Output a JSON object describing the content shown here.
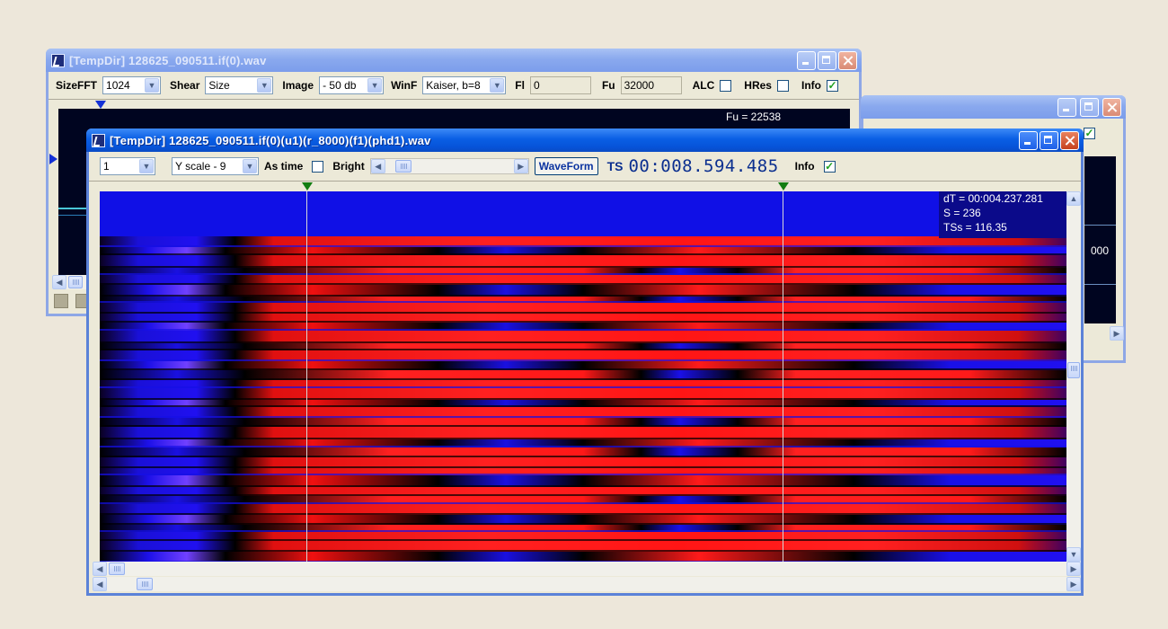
{
  "window_back": {
    "title": "[TempDir] 128625_090511.if(0).wav",
    "toolbar": {
      "sizefft_label": "SizeFFT",
      "sizefft_value": "1024",
      "shear_label": "Shear",
      "shear_value": "Size",
      "image_label": "Image",
      "image_value": "- 50 db",
      "winf_label": "WinF",
      "winf_value": "Kaiser, b=8",
      "fl_label": "Fl",
      "fl_value": "0",
      "fu_label": "Fu",
      "fu_value": "32000",
      "alc_label": "ALC",
      "alc_checked": false,
      "hres_label": "HRes",
      "hres_checked": false,
      "info_label": "Info",
      "info_checked": true
    },
    "overlay": {
      "fu": "Fu = 22538"
    }
  },
  "window_right": {
    "title": "",
    "info_checked": true,
    "overlay_value": "000"
  },
  "window_front": {
    "title": "[TempDir] 128625_090511.if(0)(u1)(r_8000)(f1)(phd1).wav",
    "toolbar": {
      "channel_value": "1",
      "yscale_value": "Y scale - 9",
      "astime_label": "As time",
      "astime_checked": false,
      "bright_label": "Bright",
      "bright_checked": false,
      "waveform_label": "WaveForm",
      "ts_label": "TS",
      "ts_value": "00:008.594.485",
      "info_label": "Info",
      "info_checked": true
    },
    "overlay": {
      "dt": "dT = 00:004.237.281",
      "s": "S = 236",
      "tss": "TSs = 116.35"
    }
  },
  "icons": [
    "app-icon",
    "minimize-icon",
    "maximize-icon",
    "close-icon",
    "dropdown-arrow-icon",
    "scroll-left-icon",
    "scroll-right-icon",
    "scroll-up-icon",
    "scroll-down-icon",
    "marker-triangle-icon",
    "checkmark-icon"
  ],
  "colors": {
    "high": "#ff1a1a",
    "mid": "#000000",
    "low": "#1a0ee8",
    "peak": "#a04cff",
    "marker": "#127d12",
    "titlebar": "#0a5fe4"
  }
}
